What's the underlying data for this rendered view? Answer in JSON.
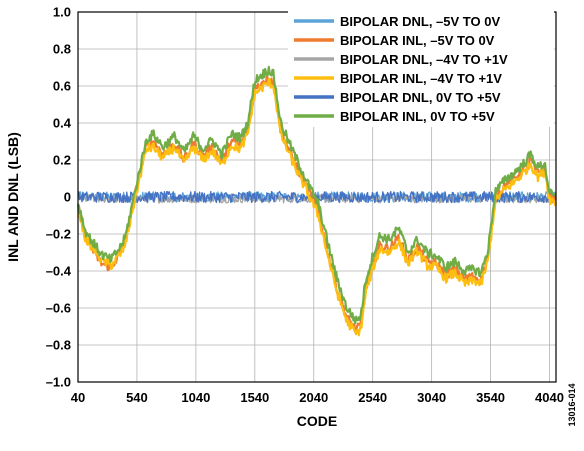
{
  "figure_id": "13016-014",
  "chart_data": {
    "type": "line",
    "xlabel": "CODE",
    "ylabel": "INL AND DNL (LSB)",
    "xlim": [
      40,
      4095
    ],
    "ylim": [
      -1.0,
      1.0
    ],
    "x_ticks": [
      40,
      540,
      1040,
      1540,
      2040,
      2540,
      3040,
      3540,
      4040
    ],
    "x_tick_labels": [
      "40",
      "540",
      "1040",
      "1540",
      "2040",
      "2540",
      "3040",
      "3540",
      "4040"
    ],
    "y_ticks": [
      1.0,
      0.8,
      0.6,
      0.4,
      0.2,
      0,
      -0.2,
      -0.4,
      -0.6,
      -0.8,
      -1.0
    ],
    "y_tick_labels": [
      "1.0",
      "0.8",
      "0.6",
      "0.4",
      "0.2",
      "0",
      "–0.2",
      "–0.4",
      "–0.6",
      "–0.8",
      "–1.0"
    ],
    "grid": true,
    "legend_position": "top-right",
    "x": [
      40,
      100,
      160,
      240,
      320,
      400,
      440,
      520,
      620,
      680,
      760,
      860,
      940,
      1020,
      1100,
      1180,
      1260,
      1340,
      1420,
      1480,
      1540,
      1600,
      1660,
      1700,
      1760,
      1840,
      1920,
      2000,
      2080,
      2160,
      2240,
      2320,
      2400,
      2440,
      2480,
      2540,
      2600,
      2680,
      2760,
      2840,
      2920,
      3000,
      3080,
      3160,
      3240,
      3320,
      3400,
      3460,
      3520,
      3580,
      3660,
      3740,
      3820,
      3880,
      3940,
      4000,
      4040,
      4095
    ],
    "series": [
      {
        "name": "BIPOLAR DNL, –5V TO 0V",
        "color": "#5ba3d9",
        "kind": "dnl",
        "level": 0.0,
        "noise": 0.028
      },
      {
        "name": "BIPOLAR INL, –5V TO 0V",
        "color": "#ee7b30",
        "kind": "inl",
        "values": [
          -0.05,
          -0.2,
          -0.28,
          -0.36,
          -0.38,
          -0.3,
          -0.25,
          0.0,
          0.28,
          0.3,
          0.23,
          0.29,
          0.2,
          0.29,
          0.22,
          0.27,
          0.19,
          0.3,
          0.28,
          0.36,
          0.58,
          0.62,
          0.65,
          0.62,
          0.36,
          0.24,
          0.13,
          0.03,
          -0.08,
          -0.3,
          -0.5,
          -0.65,
          -0.72,
          -0.69,
          -0.5,
          -0.37,
          -0.26,
          -0.28,
          -0.22,
          -0.34,
          -0.27,
          -0.35,
          -0.36,
          -0.42,
          -0.39,
          -0.44,
          -0.43,
          -0.45,
          -0.32,
          0.0,
          0.06,
          0.1,
          0.15,
          0.2,
          0.13,
          0.16,
          0.0,
          -0.02
        ]
      },
      {
        "name": "BIPOLAR DNL, –4V TO +1V",
        "color": "#a5a5a5",
        "kind": "dnl",
        "level": -0.01,
        "noise": 0.022
      },
      {
        "name": "BIPOLAR INL, –4V TO +1V",
        "color": "#fdbe10",
        "kind": "inl",
        "values": [
          -0.06,
          -0.22,
          -0.27,
          -0.34,
          -0.37,
          -0.31,
          -0.26,
          -0.02,
          0.26,
          0.27,
          0.21,
          0.27,
          0.18,
          0.27,
          0.2,
          0.25,
          0.17,
          0.28,
          0.26,
          0.34,
          0.56,
          0.59,
          0.62,
          0.6,
          0.34,
          0.22,
          0.11,
          0.01,
          -0.1,
          -0.32,
          -0.52,
          -0.67,
          -0.74,
          -0.71,
          -0.52,
          -0.39,
          -0.28,
          -0.3,
          -0.24,
          -0.36,
          -0.29,
          -0.37,
          -0.38,
          -0.44,
          -0.41,
          -0.47,
          -0.45,
          -0.47,
          -0.34,
          -0.02,
          0.04,
          0.08,
          0.13,
          0.18,
          0.11,
          0.14,
          -0.01,
          -0.03
        ]
      },
      {
        "name": "BIPOLAR DNL, 0V TO +5V",
        "color": "#4472c4",
        "kind": "dnl",
        "level": 0.0,
        "noise": 0.03
      },
      {
        "name": "BIPOLAR INL, 0V TO +5V",
        "color": "#70ad47",
        "kind": "inl",
        "values": [
          -0.03,
          -0.18,
          -0.24,
          -0.31,
          -0.34,
          -0.27,
          -0.22,
          0.02,
          0.31,
          0.34,
          0.27,
          0.33,
          0.24,
          0.33,
          0.26,
          0.31,
          0.23,
          0.34,
          0.32,
          0.4,
          0.63,
          0.66,
          0.69,
          0.66,
          0.4,
          0.28,
          0.17,
          0.06,
          -0.04,
          -0.25,
          -0.45,
          -0.6,
          -0.67,
          -0.64,
          -0.45,
          -0.32,
          -0.21,
          -0.23,
          -0.17,
          -0.3,
          -0.23,
          -0.3,
          -0.32,
          -0.38,
          -0.35,
          -0.4,
          -0.39,
          -0.41,
          -0.28,
          0.03,
          0.09,
          0.13,
          0.18,
          0.23,
          0.16,
          0.18,
          0.02,
          0.0
        ]
      }
    ]
  }
}
